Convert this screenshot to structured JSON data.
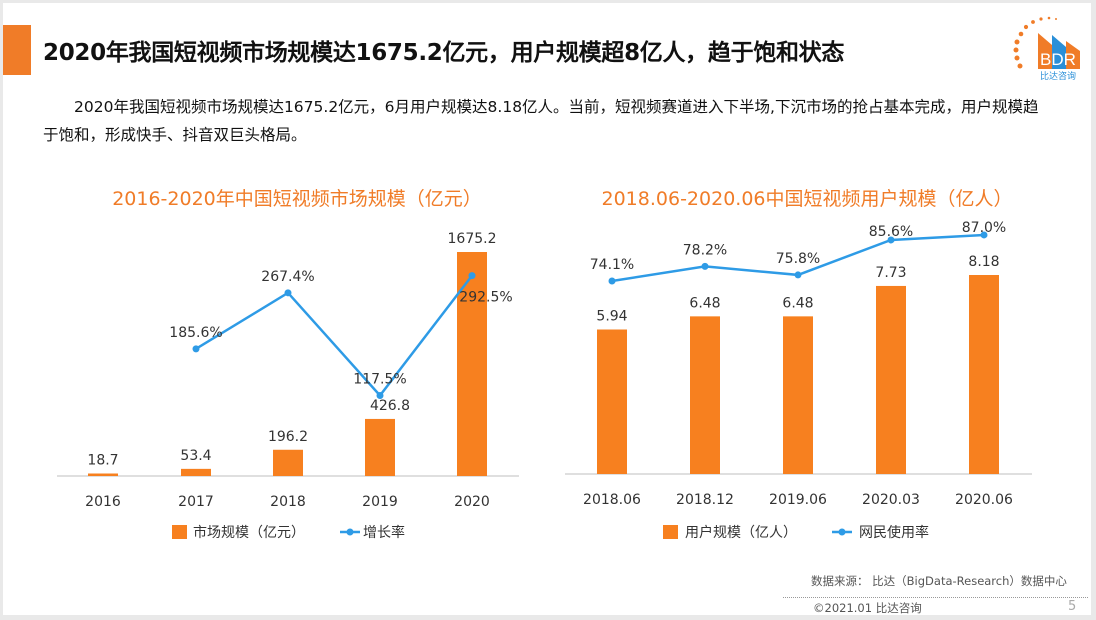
{
  "header": {
    "title": "2020年我国短视频市场规模达1675.2亿元，用户规模超8亿人，趋于饱和状态",
    "description": "2020年我国短视频市场规模达1675.2亿元，6月用户规模达8.18亿人。当前，短视频赛道进入下半场,下沉市场的抢占基本完成，用户规模趋于饱和，形成快手、抖音双巨头格局。",
    "logo_text": "BDR",
    "logo_subtext": "比达咨询"
  },
  "colors": {
    "accent": "#f07c28",
    "bar": "#f7801f",
    "line": "#2e9be6",
    "logo_blue": "#2a8fd8"
  },
  "chart_data": [
    {
      "type": "bar+line",
      "title": "2016-2020年中国短视频市场规模（亿元）",
      "categories": [
        "2016",
        "2017",
        "2018",
        "2019",
        "2020"
      ],
      "series": [
        {
          "name": "市场规模（亿元）",
          "type": "bar",
          "values": [
            18.7,
            53.4,
            196.2,
            426.8,
            1675.2
          ],
          "labels": [
            "18.7",
            "53.4",
            "196.2",
            "426.8",
            "1675.2"
          ]
        },
        {
          "name": "增长率",
          "type": "line",
          "values": [
            null,
            185.6,
            267.4,
            117.5,
            292.5
          ],
          "labels": [
            "",
            "185.6%",
            "267.4%",
            "117.5%",
            "292.5%"
          ]
        }
      ],
      "grid": false,
      "legend": "bottom"
    },
    {
      "type": "bar+line",
      "title": "2018.06-2020.06中国短视频用户规模（亿人）",
      "categories": [
        "2018.06",
        "2018.12",
        "2019.06",
        "2020.03",
        "2020.06"
      ],
      "series": [
        {
          "name": "用户规模（亿人）",
          "type": "bar",
          "values": [
            5.94,
            6.48,
            6.48,
            7.73,
            8.18
          ],
          "labels": [
            "5.94",
            "6.48",
            "6.48",
            "7.73",
            "8.18"
          ]
        },
        {
          "name": "网民使用率",
          "type": "line",
          "values": [
            74.1,
            78.2,
            75.8,
            85.6,
            87.0
          ],
          "labels": [
            "74.1%",
            "78.2%",
            "75.8%",
            "85.6%",
            "87.0%"
          ]
        }
      ],
      "grid": false,
      "legend": "bottom"
    }
  ],
  "footer": {
    "source": "数据来源： 比达（BigData-Research）数据中心",
    "copyright": "©2021.01  比达咨询",
    "page_number": "5"
  }
}
